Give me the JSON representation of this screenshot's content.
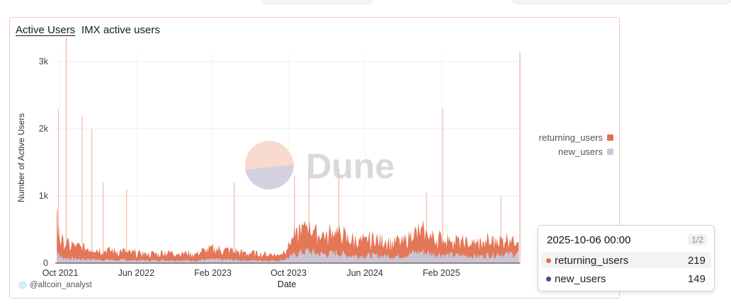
{
  "header": {
    "tab_label": "Active Users",
    "chart_title": "IMX active users"
  },
  "watermark": {
    "text": "Dune"
  },
  "credit": {
    "text": "@altcoin_analyst"
  },
  "colors": {
    "returning": "#e2704f",
    "new": "#c9c8dc",
    "tooltip_new_dot": "#4a4a86",
    "grid": "#ececec"
  },
  "legend": [
    {
      "label": "returning_users",
      "color": "#e2704f"
    },
    {
      "label": "new_users",
      "color": "#c9c8dc"
    }
  ],
  "tooltip": {
    "timestamp": "2025-10-06 00:00",
    "page": "1/2",
    "rows": [
      {
        "label": "returning_users",
        "value": "219",
        "color": "#e2704f"
      },
      {
        "label": "new_users",
        "value": "149",
        "color": "#4a4a86"
      }
    ]
  },
  "chart_data": {
    "type": "area",
    "stacked": true,
    "xlabel": "Date",
    "ylabel": "Number of Active Users",
    "ylim": [
      0,
      3000
    ],
    "yticks": [
      0,
      1000,
      2000,
      3000
    ],
    "ytick_labels": [
      "0",
      "1k",
      "2k",
      "3k"
    ],
    "xlim": [
      "2021-09-15",
      "2025-10-10"
    ],
    "xtick_labels": [
      "Oct 2021",
      "Jun 2022",
      "Feb 2023",
      "Oct 2023",
      "Jun 2024",
      "Feb 2025"
    ],
    "xtick_dates": [
      "2021-10-01",
      "2022-06-01",
      "2023-02-01",
      "2023-10-01",
      "2024-06-01",
      "2025-02-01"
    ],
    "grid": true,
    "legend_position": "right",
    "series": [
      {
        "name": "returning_users",
        "x": [
          "2021-09-20",
          "2021-10-01",
          "2021-11-01",
          "2021-12-01",
          "2022-01-01",
          "2022-02-01",
          "2022-03-01",
          "2022-04-01",
          "2022-05-01",
          "2022-06-01",
          "2022-07-01",
          "2022-08-01",
          "2022-09-01",
          "2022-10-01",
          "2022-11-01",
          "2022-12-01",
          "2023-01-01",
          "2023-02-01",
          "2023-03-01",
          "2023-04-01",
          "2023-05-01",
          "2023-06-01",
          "2023-07-01",
          "2023-08-01",
          "2023-09-01",
          "2023-10-01",
          "2023-11-01",
          "2023-12-01",
          "2024-01-01",
          "2024-02-01",
          "2024-03-01",
          "2024-04-01",
          "2024-05-01",
          "2024-06-01",
          "2024-07-01",
          "2024-08-01",
          "2024-09-01",
          "2024-10-01",
          "2024-11-01",
          "2024-12-01",
          "2025-01-01",
          "2025-02-01",
          "2025-03-01",
          "2025-04-01",
          "2025-05-01",
          "2025-06-01",
          "2025-07-01",
          "2025-08-01",
          "2025-09-01",
          "2025-10-06"
        ],
        "values": [
          450,
          250,
          200,
          180,
          170,
          150,
          140,
          130,
          120,
          110,
          100,
          100,
          120,
          120,
          110,
          100,
          130,
          150,
          140,
          140,
          120,
          110,
          100,
          100,
          90,
          180,
          320,
          380,
          300,
          280,
          340,
          260,
          240,
          230,
          230,
          230,
          220,
          230,
          280,
          300,
          260,
          250,
          220,
          200,
          200,
          190,
          210,
          230,
          220,
          219
        ]
      },
      {
        "name": "new_users",
        "x": [
          "2021-09-20",
          "2021-10-01",
          "2021-11-01",
          "2021-12-01",
          "2022-01-01",
          "2022-02-01",
          "2022-03-01",
          "2022-04-01",
          "2022-05-01",
          "2022-06-01",
          "2022-07-01",
          "2022-08-01",
          "2022-09-01",
          "2022-10-01",
          "2022-11-01",
          "2022-12-01",
          "2023-01-01",
          "2023-02-01",
          "2023-03-01",
          "2023-04-01",
          "2023-05-01",
          "2023-06-01",
          "2023-07-01",
          "2023-08-01",
          "2023-09-01",
          "2023-10-01",
          "2023-11-01",
          "2023-12-01",
          "2024-01-01",
          "2024-02-01",
          "2024-03-01",
          "2024-04-01",
          "2024-05-01",
          "2024-06-01",
          "2024-07-01",
          "2024-08-01",
          "2024-09-01",
          "2024-10-01",
          "2024-11-01",
          "2024-12-01",
          "2025-01-01",
          "2025-02-01",
          "2025-03-01",
          "2025-04-01",
          "2025-05-01",
          "2025-06-01",
          "2025-07-01",
          "2025-08-01",
          "2025-09-01",
          "2025-10-06"
        ],
        "values": [
          200,
          90,
          70,
          60,
          60,
          50,
          50,
          45,
          45,
          40,
          40,
          40,
          45,
          45,
          40,
          40,
          50,
          55,
          50,
          50,
          45,
          40,
          40,
          40,
          35,
          80,
          150,
          180,
          140,
          130,
          160,
          120,
          110,
          110,
          110,
          110,
          100,
          110,
          150,
          170,
          140,
          130,
          120,
          110,
          110,
          100,
          120,
          140,
          130,
          149
        ]
      }
    ],
    "spikes": [
      {
        "x": "2021-10-20",
        "value": 3350
      },
      {
        "x": "2021-09-25",
        "value": 2300
      },
      {
        "x": "2021-12-10",
        "value": 2200
      },
      {
        "x": "2022-01-10",
        "value": 2000
      },
      {
        "x": "2022-02-15",
        "value": 1200
      },
      {
        "x": "2022-05-01",
        "value": 1100
      },
      {
        "x": "2023-04-10",
        "value": 1200
      },
      {
        "x": "2023-10-20",
        "value": 1300
      },
      {
        "x": "2023-12-05",
        "value": 1400
      },
      {
        "x": "2024-03-10",
        "value": 1400
      },
      {
        "x": "2024-12-15",
        "value": 1050
      },
      {
        "x": "2025-02-05",
        "value": 2300
      },
      {
        "x": "2025-08-10",
        "value": 1000
      }
    ]
  }
}
